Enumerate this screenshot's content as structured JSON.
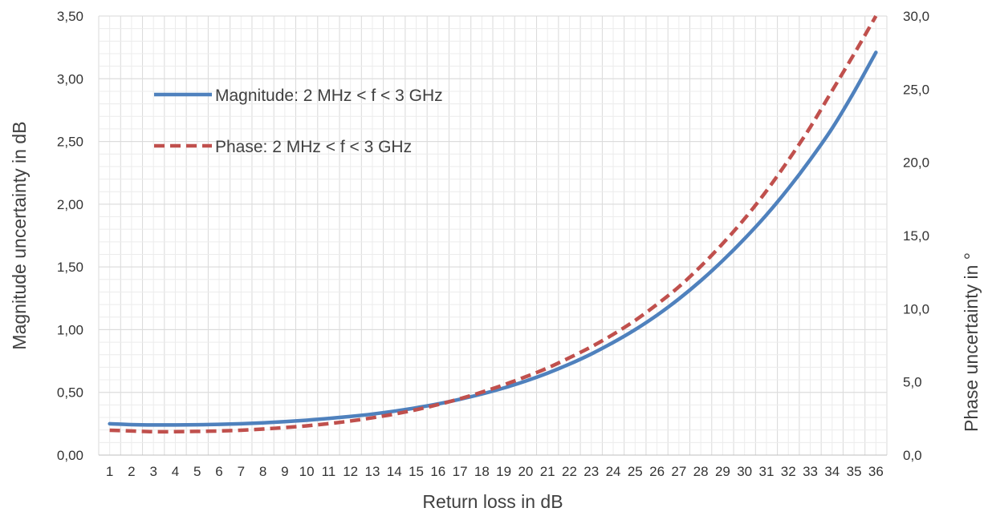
{
  "chart_data": {
    "type": "line",
    "xlabel": "Return loss in dB",
    "ylabel": "Magnitude uncertainty in  dB",
    "y2label": "Phase uncertainty in  °",
    "x": [
      1,
      2,
      3,
      4,
      5,
      6,
      7,
      8,
      9,
      10,
      11,
      12,
      13,
      14,
      15,
      16,
      17,
      18,
      19,
      20,
      21,
      22,
      23,
      24,
      25,
      26,
      27,
      28,
      29,
      30,
      31,
      32,
      33,
      34,
      35,
      36
    ],
    "x_tick_labels": [
      "1",
      "2",
      "3",
      "4",
      "5",
      "6",
      "7",
      "8",
      "9",
      "10",
      "11",
      "12",
      "13",
      "14",
      "15",
      "16",
      "17",
      "18",
      "19",
      "20",
      "21",
      "22",
      "23",
      "24",
      "25",
      "26",
      "27",
      "28",
      "29",
      "30",
      "31",
      "32",
      "33",
      "34",
      "35",
      "36"
    ],
    "ylim": [
      0,
      3.5
    ],
    "y_tick_labels": [
      "0,00",
      "0,50",
      "1,00",
      "1,50",
      "2,00",
      "2,50",
      "3,00",
      "3,50"
    ],
    "y2lim": [
      0,
      30
    ],
    "y2_tick_labels": [
      "0,0",
      "5,0",
      "10,0",
      "15,0",
      "20,0",
      "25,0",
      "30,0"
    ],
    "grid": true,
    "legend_position": "top-left",
    "series": [
      {
        "name": "Magnitude: 2 MHz < f < 3 GHz",
        "axis": "left",
        "color": "#4F81BD",
        "style": "solid",
        "values": [
          0.25,
          0.243,
          0.24,
          0.24,
          0.242,
          0.245,
          0.25,
          0.257,
          0.267,
          0.278,
          0.292,
          0.308,
          0.327,
          0.35,
          0.377,
          0.408,
          0.445,
          0.487,
          0.535,
          0.59,
          0.653,
          0.725,
          0.806,
          0.898,
          1.0,
          1.115,
          1.245,
          1.39,
          1.55,
          1.725,
          1.915,
          2.125,
          2.355,
          2.605,
          2.895,
          3.21
        ]
      },
      {
        "name": "Phase: 2 MHz < f < 3 GHz",
        "axis": "right",
        "color": "#C0504D",
        "style": "dashed",
        "values": [
          1.7,
          1.65,
          1.6,
          1.6,
          1.62,
          1.65,
          1.7,
          1.78,
          1.88,
          2.0,
          2.15,
          2.33,
          2.55,
          2.8,
          3.1,
          3.45,
          3.85,
          4.3,
          4.8,
          5.35,
          5.95,
          6.65,
          7.4,
          8.25,
          9.2,
          10.3,
          11.5,
          12.9,
          14.45,
          16.15,
          18.05,
          20.15,
          22.4,
          24.9,
          27.4,
          30.0
        ]
      }
    ]
  }
}
